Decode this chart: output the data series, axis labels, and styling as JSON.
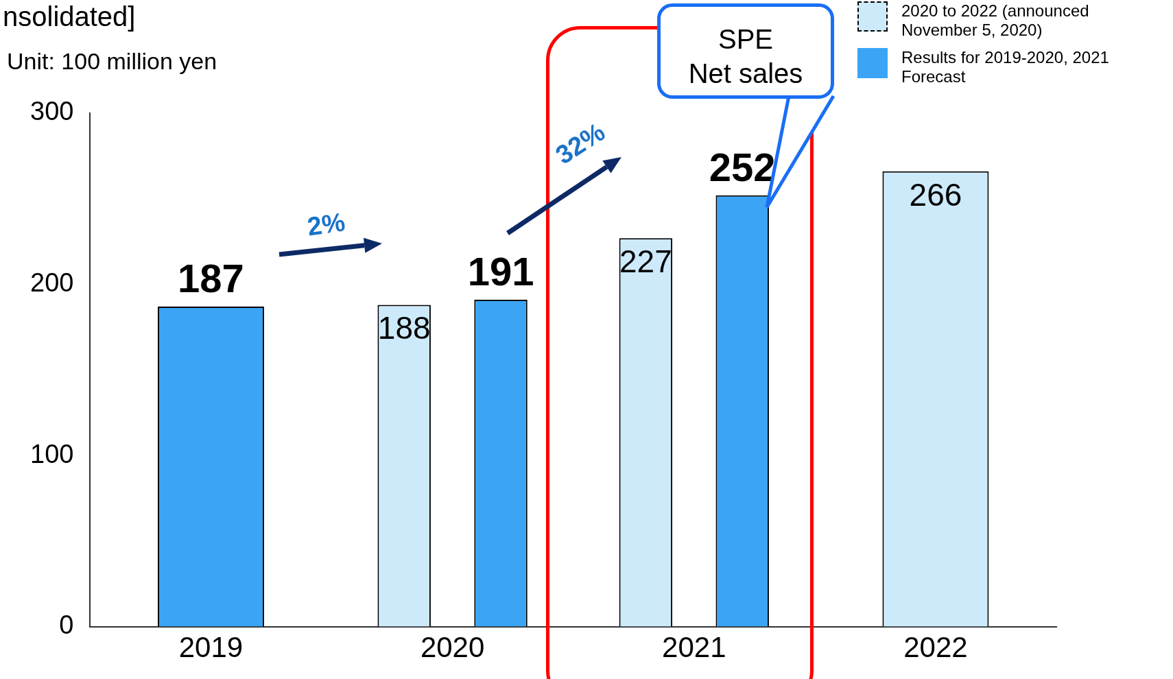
{
  "chart_data": {
    "type": "bar",
    "title": "nsolidated]",
    "categories": [
      "2019",
      "2020",
      "2021",
      "2022"
    ],
    "series": [
      {
        "name": "2020 to 2022 (announced November 5, 2020)",
        "color": "#cdeafb",
        "line_style": "dashed",
        "values": [
          null,
          188,
          227,
          266
        ]
      },
      {
        "name": "Results for 2019-2020, 2021 Forecast",
        "color": "#3ba4f4",
        "values": [
          187,
          191,
          252,
          null
        ]
      }
    ],
    "ylim": [
      0,
      300
    ],
    "yticks": [
      0,
      100,
      200,
      300
    ],
    "grid": false,
    "legend": "top right",
    "data_labels": true,
    "annotations": [
      "Unit: 100 million yen",
      "2%",
      "32%",
      "SPE\nNet sales"
    ]
  }
}
